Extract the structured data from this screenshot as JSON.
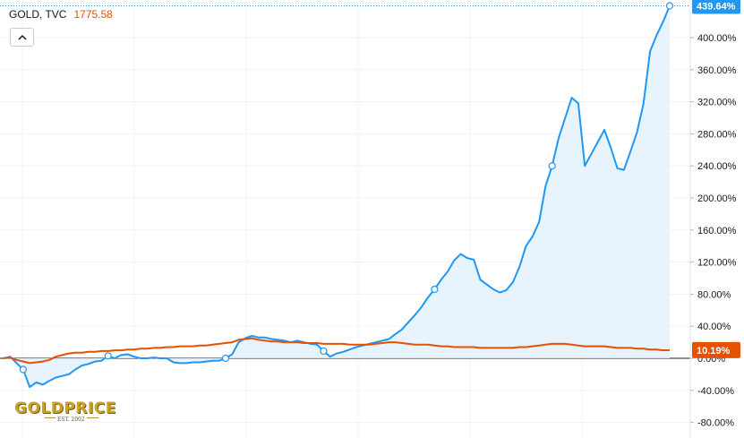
{
  "header": {
    "symbol": "GOLD, TVC",
    "price": "1775.58"
  },
  "logo": {
    "main": "GOLDPRICE",
    "sub": "EST. 2002"
  },
  "chart_data": {
    "type": "line",
    "y_axis": {
      "unit": "%",
      "ylim": [
        -90,
        450
      ],
      "ticks": [
        "-80.00%",
        "-40.00%",
        "0.00%",
        "40.00%",
        "80.00%",
        "120.00%",
        "160.00%",
        "200.00%",
        "240.00%",
        "280.00%",
        "320.00%",
        "360.00%",
        "400.00%"
      ],
      "tick_values": [
        -80,
        -40,
        0,
        40,
        80,
        120,
        160,
        200,
        240,
        280,
        320,
        360,
        400
      ]
    },
    "grid": true,
    "series": [
      {
        "color": "#2196f3",
        "fill": "#e3f2fd",
        "last_label": "439.64%",
        "values": [
          0,
          2,
          -6,
          -14,
          -36,
          -30,
          -33,
          -28,
          -24,
          -22,
          -20,
          -14,
          -9,
          -7,
          -4,
          -3,
          3,
          0,
          4,
          5,
          2,
          0,
          0,
          1,
          0,
          0,
          -5,
          -6,
          -6,
          -5,
          -5,
          -4,
          -3,
          -3,
          0,
          5,
          20,
          25,
          28,
          26,
          26,
          24,
          23,
          22,
          20,
          22,
          20,
          18,
          17,
          9,
          2,
          6,
          8,
          11,
          14,
          16,
          18,
          20,
          22,
          24,
          30,
          36,
          45,
          54,
          64,
          76,
          86,
          98,
          108,
          122,
          130,
          125,
          123,
          98,
          92,
          86,
          82,
          85,
          95,
          114,
          140,
          152,
          170,
          215,
          240,
          275,
          300,
          325,
          318,
          240,
          255,
          270,
          285,
          262,
          237,
          235,
          258,
          282,
          318,
          383,
          403,
          420,
          439.64
        ]
      },
      {
        "color": "#e65100",
        "last_label": "10.19%",
        "values": [
          0,
          1,
          -2,
          -4,
          -6,
          -5,
          -4,
          -2,
          2,
          4,
          6,
          7,
          7,
          8,
          8,
          9,
          9,
          10,
          10,
          11,
          11,
          12,
          12,
          13,
          13,
          14,
          14,
          15,
          15,
          15,
          16,
          16,
          17,
          18,
          19,
          20,
          23,
          24,
          25,
          23,
          22,
          21,
          21,
          20,
          20,
          20,
          19,
          19,
          19,
          18,
          18,
          18,
          18,
          17,
          17,
          17,
          17,
          18,
          19,
          20,
          20,
          19,
          18,
          17,
          17,
          17,
          16,
          15,
          15,
          14,
          14,
          14,
          14,
          13,
          13,
          13,
          13,
          13,
          13,
          14,
          14,
          15,
          16,
          17,
          18,
          18,
          18,
          17,
          16,
          15,
          15,
          15,
          15,
          14,
          13,
          13,
          13,
          12,
          12,
          11,
          11,
          10,
          10.19
        ]
      }
    ]
  }
}
